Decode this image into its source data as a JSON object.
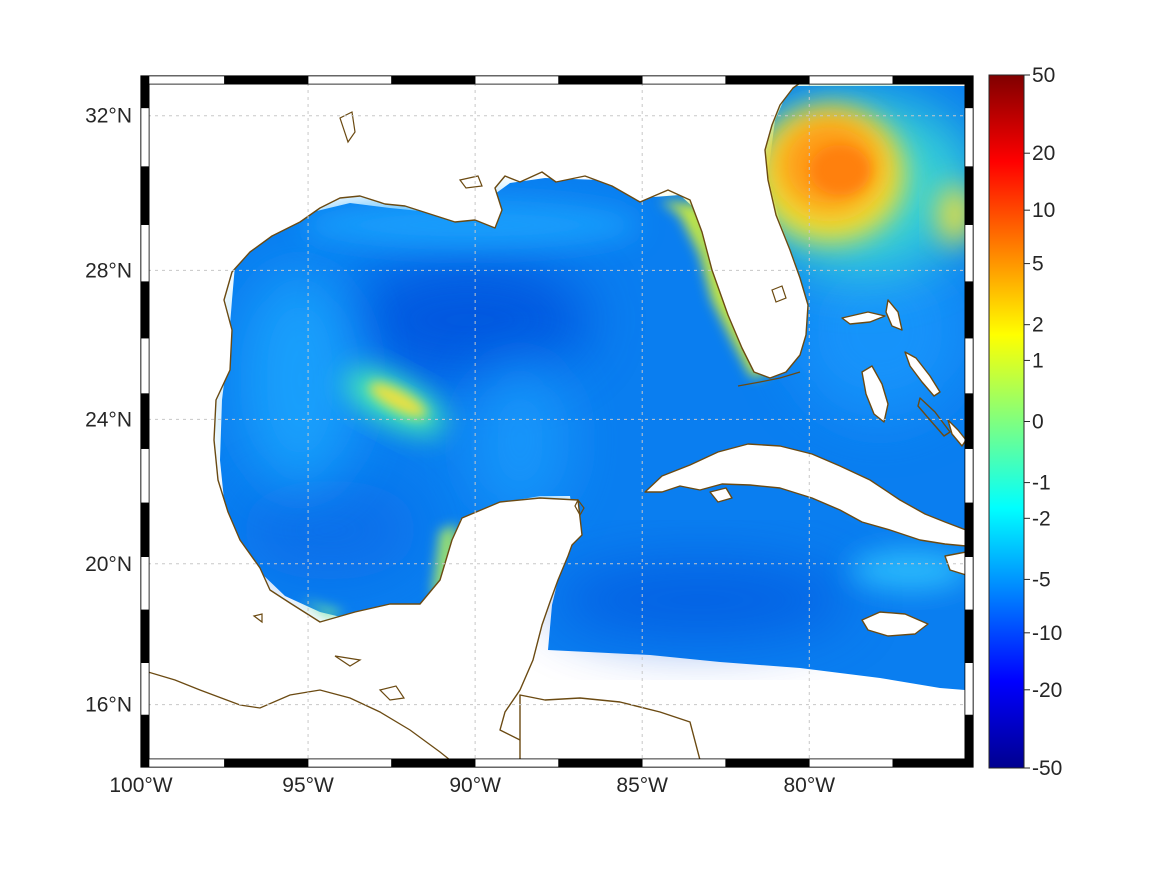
{
  "map": {
    "projection": "mercator",
    "lon_range": [
      -100,
      -75.1
    ],
    "lat_range": [
      14.2,
      33.0
    ],
    "grid": true,
    "frame": "black-white-checker",
    "coastline_color": "#6b4a12",
    "land_color": "#ffffff"
  },
  "axes": {
    "x_ticks": [
      {
        "value": -100,
        "label": "100°W"
      },
      {
        "value": -95,
        "label": "95°W"
      },
      {
        "value": -90,
        "label": "90°W"
      },
      {
        "value": -85,
        "label": "85°W"
      },
      {
        "value": -80,
        "label": "80°W"
      }
    ],
    "y_ticks": [
      {
        "value": 32,
        "label": "32°N"
      },
      {
        "value": 28,
        "label": "28°N"
      },
      {
        "value": 24,
        "label": "24°N"
      },
      {
        "value": 20,
        "label": "20°N"
      },
      {
        "value": 16,
        "label": "16°N"
      }
    ]
  },
  "colorbar": {
    "colormap": "jet",
    "scale": "symmetric-log",
    "range": [
      -50,
      50
    ],
    "ticks": [
      {
        "value": 50,
        "label": "50"
      },
      {
        "value": 20,
        "label": "20"
      },
      {
        "value": 10,
        "label": "10"
      },
      {
        "value": 5,
        "label": "5"
      },
      {
        "value": 2,
        "label": "2"
      },
      {
        "value": 1,
        "label": "1"
      },
      {
        "value": 0,
        "label": "0"
      },
      {
        "value": -1,
        "label": "-1"
      },
      {
        "value": -2,
        "label": "-2"
      },
      {
        "value": -5,
        "label": "-5"
      },
      {
        "value": -10,
        "label": "-10"
      },
      {
        "value": -20,
        "label": "-20"
      },
      {
        "value": -50,
        "label": "-50"
      }
    ]
  },
  "field_features": [
    {
      "name": "atlantic-positive-core",
      "lon": -79.2,
      "lat": 30.6,
      "value": 5
    },
    {
      "name": "western-gulf-eddy",
      "lon": -92.4,
      "lat": 24.6,
      "value": 1
    },
    {
      "name": "florida-shelf",
      "lon": -82.6,
      "lat": 27.0,
      "value": 1
    },
    {
      "name": "central-gulf",
      "lon": -89.5,
      "lat": 26.5,
      "value": -8
    },
    {
      "name": "caribbean",
      "lon": -82.5,
      "lat": 19.5,
      "value": -7
    }
  ]
}
